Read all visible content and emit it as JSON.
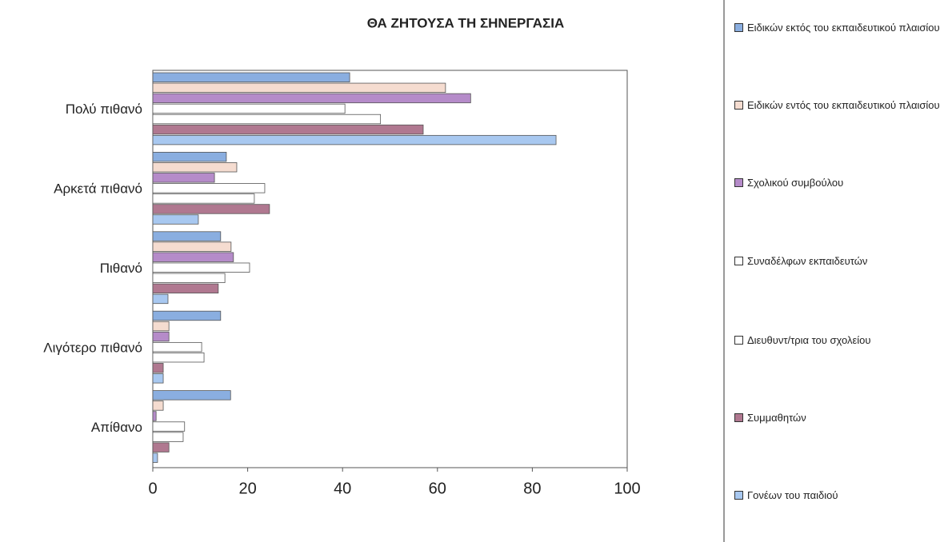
{
  "chart_data": {
    "type": "hbar",
    "title": "ΘΑ ΖΗΤΟΥΣΑ ΤΗ ΣΗΝΕΡΓΑΣΙΑ",
    "categories": [
      "Πολύ πιθανό",
      "Αρκετά πιθανό",
      "Πιθανό",
      "Λιγότερο πιθανό",
      "Απίθανο"
    ],
    "series": [
      {
        "name": "Ειδικών εκτός του εκπαιδευτικού πλαισίου",
        "color": "#8aaee0",
        "values": [
          41.5,
          15.5,
          14.3,
          14.3,
          16.4
        ]
      },
      {
        "name": "Ειδικών εντός του εκπαιδευτικού πλαισίου",
        "color": "#f5dcd0",
        "values": [
          61.7,
          17.7,
          16.5,
          3.4,
          2.2
        ]
      },
      {
        "name": "Σχολικού συμβούλου",
        "color": "#b58bc9",
        "values": [
          67,
          13,
          17,
          3.4,
          0.7
        ]
      },
      {
        "name": "Συναδέλφων εκπαιδευτών",
        "color": "#ffffff",
        "values": [
          40.5,
          23.6,
          20.4,
          10.3,
          6.7
        ]
      },
      {
        "name": "Διευθυντ/τρια του σχολείου",
        "color": "#ffffff",
        "values": [
          48,
          21.4,
          15.2,
          10.8,
          6.4
        ]
      },
      {
        "name": "Συμμαθητών",
        "color": "#b07890",
        "values": [
          57,
          24.6,
          13.8,
          2.2,
          3.4
        ]
      },
      {
        "name": "Γονέων του παιδιού",
        "color": "#a8c8f0",
        "values": [
          85,
          9.6,
          3.2,
          2.2,
          1
        ]
      }
    ],
    "xlim": [
      0,
      100
    ],
    "xticks": [
      0,
      20,
      40,
      60,
      80,
      100
    ],
    "legend": "right"
  }
}
